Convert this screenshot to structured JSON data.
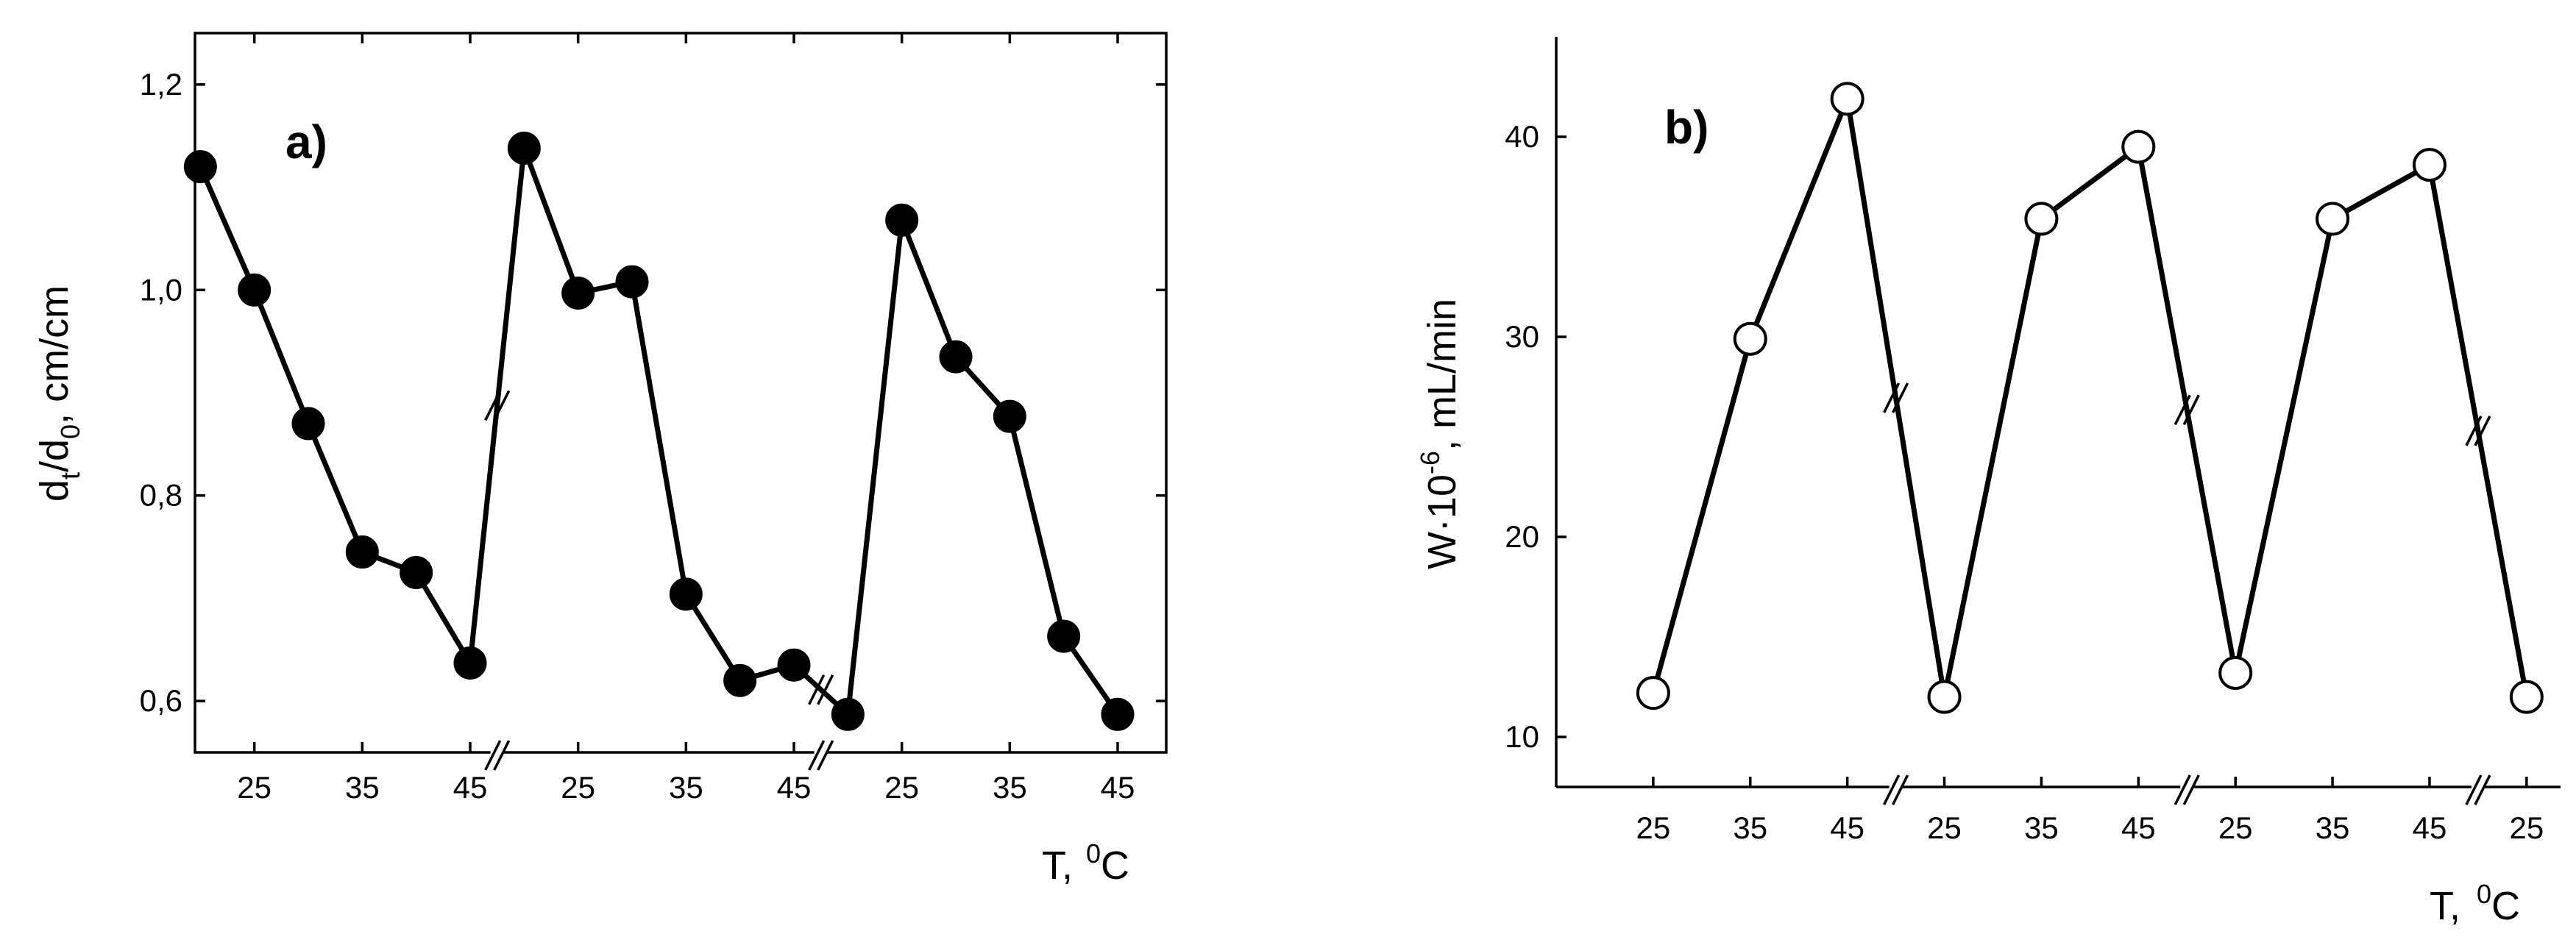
{
  "chart_data": [
    {
      "type": "line",
      "panel_label": "a)",
      "marker": "filled-circle",
      "xlabel": "T,",
      "xlabel_unit_sup": "0",
      "xlabel_unit": "C",
      "ylabel_parts": [
        "d",
        "t",
        "/d",
        "0",
        ", cm/cm"
      ],
      "ylim": [
        0.55,
        1.25
      ],
      "yticks": [
        0.6,
        0.8,
        1.0,
        1.2
      ],
      "ytick_labels": [
        "0,6",
        "0,8",
        "1,0",
        "1,2"
      ],
      "x": [
        0,
        1,
        2,
        3,
        4,
        5,
        6,
        7,
        8,
        9,
        10,
        11,
        12,
        13,
        14,
        15,
        16,
        17
      ],
      "xlim": [
        -0.1,
        17.9
      ],
      "xticks": [
        1,
        3,
        5,
        7,
        9,
        11,
        13,
        15,
        17
      ],
      "xtick_labels": [
        "25",
        "35",
        "45",
        "25",
        "35",
        "45",
        "25",
        "35",
        "45"
      ],
      "axis_breaks": [
        5.5,
        11.5
      ],
      "series": [
        {
          "name": "d_t/d_0",
          "values": [
            1.12,
            1.0,
            0.87,
            0.745,
            0.725,
            0.637,
            1.138,
            0.997,
            1.008,
            0.704,
            0.62,
            0.635,
            0.587,
            1.068,
            0.935,
            0.877,
            0.663,
            0.587
          ]
        }
      ]
    },
    {
      "type": "line",
      "panel_label": "b)",
      "marker": "open-circle",
      "xlabel": "T,",
      "xlabel_unit_sup": "0",
      "xlabel_unit": "C",
      "ylabel_parts": [
        "W·10",
        "-6",
        ", mL/min"
      ],
      "ylim": [
        7.5,
        45
      ],
      "yticks": [
        10,
        20,
        30,
        40
      ],
      "ytick_labels": [
        "10",
        "20",
        "30",
        "40"
      ],
      "x": [
        0,
        1,
        2,
        3,
        4,
        5,
        6,
        7,
        8,
        9
      ],
      "xlim": [
        -1,
        9.35
      ],
      "xticks": [
        0,
        1,
        2,
        3,
        4,
        5,
        6,
        7,
        8,
        9
      ],
      "xtick_labels": [
        "25",
        "35",
        "45",
        "25",
        "35",
        "45",
        "25",
        "35",
        "45",
        "25"
      ],
      "axis_breaks": [
        2.5,
        5.5,
        8.5
      ],
      "series": [
        {
          "name": "W",
          "values": [
            12.2,
            29.9,
            41.9,
            12.0,
            35.9,
            39.5,
            13.2,
            35.9,
            38.6,
            12.0
          ]
        }
      ]
    }
  ]
}
